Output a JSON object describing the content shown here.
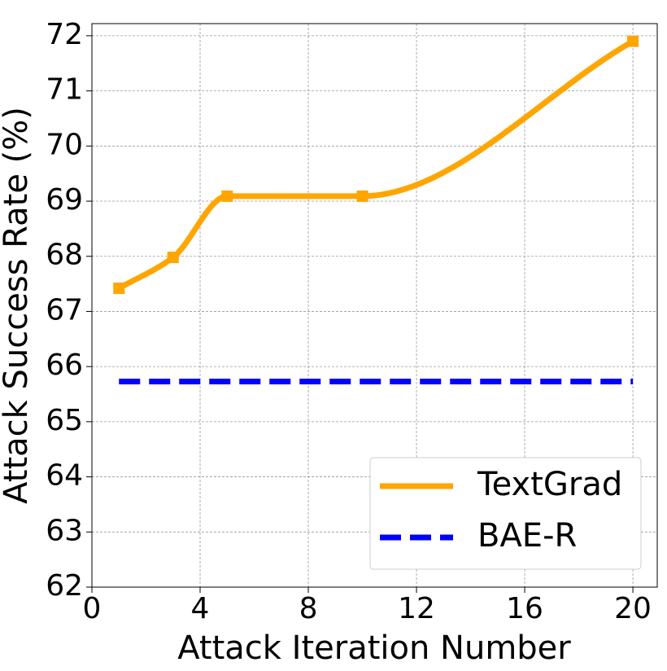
{
  "chart_data": {
    "type": "line",
    "xlabel": "Attack Iteration Number",
    "ylabel": "Attack Success Rate (%)",
    "xlim": [
      0,
      20.9
    ],
    "ylim": [
      62,
      72.22
    ],
    "xticks": [
      0,
      4,
      8,
      12,
      16,
      20
    ],
    "yticks": [
      62,
      63,
      64,
      65,
      66,
      67,
      68,
      69,
      70,
      71,
      72
    ],
    "grid": true,
    "legend": "lower right",
    "series": [
      {
        "name": "TextGrad",
        "color": "#ffa500",
        "style": "solid",
        "smooth": true,
        "marker": "square",
        "x": [
          1,
          3,
          5,
          10,
          20
        ],
        "values": [
          67.42,
          67.98,
          69.09,
          69.09,
          71.9
        ]
      },
      {
        "name": "BAE-R",
        "color": "#0000ff",
        "style": "dashed",
        "x": [
          1,
          20
        ],
        "values": [
          65.73,
          65.73
        ]
      }
    ]
  }
}
